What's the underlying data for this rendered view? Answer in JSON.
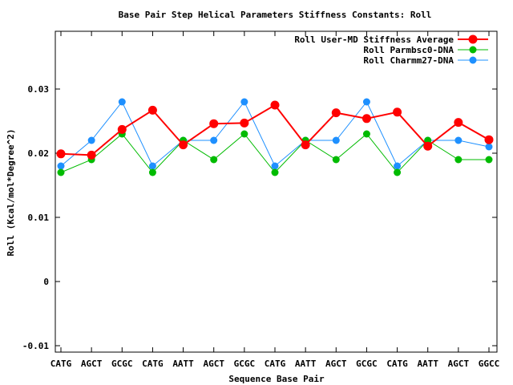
{
  "chart_data": {
    "type": "line",
    "title": "Base Pair Step Helical Parameters Stiffness Constants: Roll",
    "xlabel": "Sequence Base Pair",
    "ylabel": "Roll (Kcal/mol*Degree^2)",
    "ylim": [
      -0.011,
      0.039
    ],
    "yticks": [
      -0.01,
      0,
      0.01,
      0.02,
      0.03
    ],
    "ytick_labels": [
      "-0.01",
      "0",
      "0.01",
      "0.02",
      "0.03"
    ],
    "grid": false,
    "legend_position": "top-right",
    "categories": [
      "CATG",
      "AGCT",
      "GCGC",
      "CATG",
      "AATT",
      "AGCT",
      "GCGC",
      "CATG",
      "AATT",
      "AGCT",
      "GCGC",
      "CATG",
      "AATT",
      "AGCT",
      "GGCC"
    ],
    "series": [
      {
        "name": "Roll User-MD Stiffness Average",
        "color": "#ff0000",
        "line_width": 2,
        "marker_radius": 5.5,
        "values": [
          0.0199,
          0.0197,
          0.0237,
          0.0267,
          0.0213,
          0.0246,
          0.0247,
          0.0275,
          0.0213,
          0.0263,
          0.0254,
          0.0264,
          0.0211,
          0.0248,
          0.0221
        ]
      },
      {
        "name": "Roll Parmbsc0-DNA",
        "color": "#00bb00",
        "line_width": 1,
        "marker_radius": 4.5,
        "values": [
          0.017,
          0.019,
          0.023,
          0.017,
          0.022,
          0.019,
          0.023,
          0.017,
          0.022,
          0.019,
          0.023,
          0.017,
          0.022,
          0.019,
          0.019
        ]
      },
      {
        "name": "Roll Charmm27-DNA",
        "color": "#1e90ff",
        "line_width": 1,
        "marker_radius": 4.5,
        "values": [
          0.018,
          0.022,
          0.028,
          0.018,
          0.022,
          0.022,
          0.028,
          0.018,
          0.022,
          0.022,
          0.028,
          0.018,
          0.022,
          0.022,
          0.021
        ]
      }
    ]
  }
}
